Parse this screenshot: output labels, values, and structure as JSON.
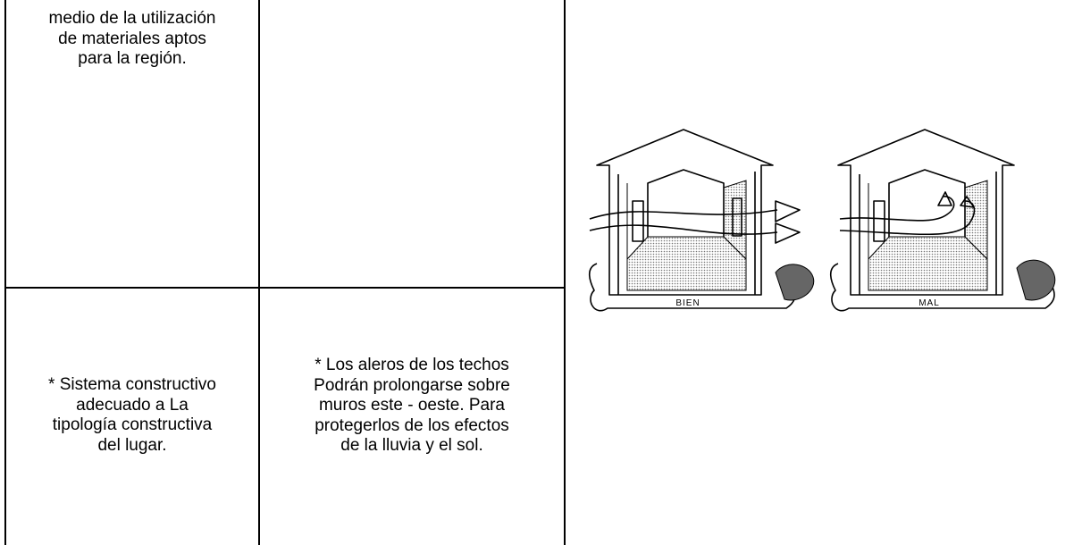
{
  "table": {
    "rows": [
      [
        [
          "medio de la utilización",
          "de materiales aptos",
          "para la región."
        ]
      ],
      [
        [
          "* Sistema constructivo",
          "adecuado a La",
          "tipología constructiva",
          "del lugar."
        ],
        [
          "* Los aleros de los techos",
          "Podrán prolongarse sobre",
          "muros este - oeste. Para",
          "protegerlos de los efectos",
          "de la lluvia y el sol."
        ]
      ]
    ]
  },
  "figure": {
    "labels": [
      "BIEN",
      "MAL"
    ]
  }
}
